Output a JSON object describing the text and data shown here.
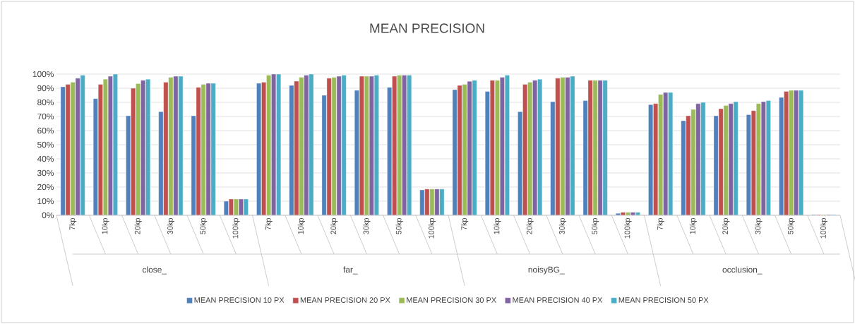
{
  "chart_data": {
    "type": "bar",
    "title": "MEAN PRECISION",
    "categories": [
      "7kp",
      "10kp",
      "20kp",
      "30kp",
      "50kp",
      "100kp",
      "7kp",
      "10kp",
      "20kp",
      "30kp",
      "50kp",
      "100kp",
      "7kp",
      "10kp",
      "20kp",
      "30kp",
      "50kp",
      "100kp",
      "7kp",
      "10kp",
      "20kp",
      "30kp",
      "50kp",
      "100kp"
    ],
    "annotations": [
      "close_",
      "far_",
      "noisyBG_",
      "occlusion_"
    ],
    "series": [
      {
        "name": "MEAN PRECISION 10 PX",
        "color": "#4f81bd",
        "values": [
          91,
          82.6,
          70.5,
          73.4,
          70.5,
          10,
          93.5,
          92,
          85,
          88.5,
          90.6,
          18,
          89,
          87.7,
          73.4,
          80.5,
          81.2,
          1.4,
          78.4,
          67,
          70.5,
          71.3,
          83.5,
          0.5
        ]
      },
      {
        "name": "MEAN PRECISION 20 PX",
        "color": "#c0504d",
        "values": [
          92.7,
          92.7,
          90,
          94.3,
          90.6,
          11.5,
          94.3,
          95,
          97.1,
          98.5,
          98.5,
          18.6,
          92,
          95.6,
          92.7,
          97.1,
          95.6,
          2.1,
          79.1,
          70.5,
          75.5,
          74.1,
          87.7,
          0.5
        ]
      },
      {
        "name": "MEAN PRECISION 30 PX",
        "color": "#9bbb59",
        "values": [
          94.3,
          96.4,
          93.3,
          97.7,
          92.7,
          11.5,
          99.2,
          97.7,
          97.7,
          98.5,
          99.2,
          18.6,
          92.7,
          95.6,
          94.3,
          97.7,
          95.6,
          2.1,
          85.6,
          75,
          77.8,
          79.1,
          88.5,
          0.5
        ]
      },
      {
        "name": "MEAN PRECISION 40 PX",
        "color": "#8064a2",
        "values": [
          97.1,
          98.5,
          95.6,
          98.5,
          93.5,
          11.5,
          100,
          99.2,
          98.5,
          98.5,
          99.2,
          18.6,
          94.9,
          97.7,
          95.6,
          97.7,
          95.6,
          2.1,
          87,
          79.1,
          79.1,
          80.5,
          88.5,
          0.5
        ]
      },
      {
        "name": "MEAN PRECISION 50 PX",
        "color": "#4bacc6",
        "values": [
          99.2,
          100,
          96.4,
          98.5,
          93.5,
          11.5,
          100,
          100,
          99.2,
          99.2,
          99.2,
          18.6,
          95.6,
          99.2,
          96.4,
          98.5,
          95.6,
          2.1,
          87,
          80,
          80.5,
          81.2,
          88.5,
          0.5
        ]
      }
    ],
    "ylim": [
      0,
      100
    ],
    "yticks": [
      {
        "value": 0,
        "label": "0%"
      },
      {
        "value": 10,
        "label": "10%"
      },
      {
        "value": 20,
        "label": "20%"
      },
      {
        "value": 30,
        "label": "30%"
      },
      {
        "value": 40,
        "label": "40%"
      },
      {
        "value": 50,
        "label": "50%"
      },
      {
        "value": 60,
        "label": "60%"
      },
      {
        "value": 70,
        "label": "70%"
      },
      {
        "value": 80,
        "label": "80%"
      },
      {
        "value": 90,
        "label": "90%"
      },
      {
        "value": 100,
        "label": "100%"
      }
    ],
    "grid": "y",
    "legend": "bottom"
  }
}
